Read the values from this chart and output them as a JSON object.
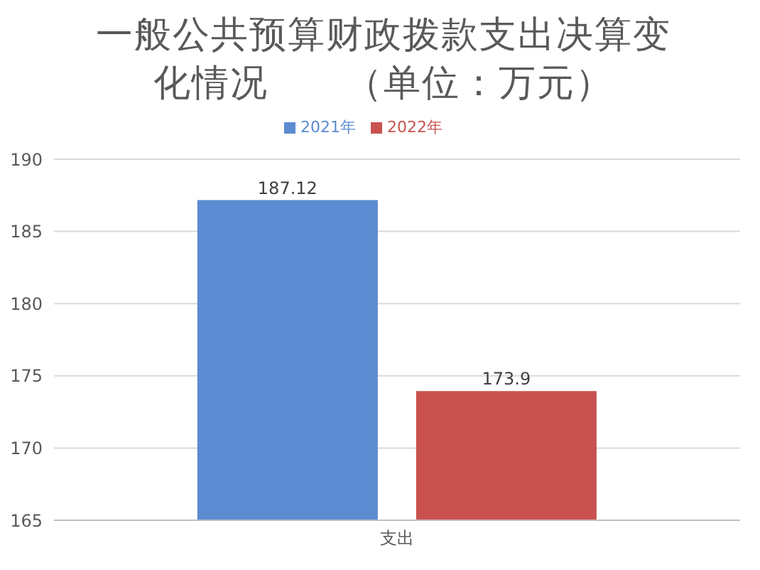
{
  "chart_data": {
    "type": "bar",
    "title": "一般公共预算财政拨款支出决算变化情况　　（单位：万元）",
    "categories": [
      "支出"
    ],
    "series": [
      {
        "name": "2021年",
        "color": "#5b8bd0",
        "values": [
          187.12
        ]
      },
      {
        "name": "2022年",
        "color": "#c9524f",
        "values": [
          173.9
        ]
      }
    ],
    "ylim": [
      165,
      190
    ],
    "yticks": [
      165,
      170,
      175,
      180,
      185,
      190
    ],
    "grid": "y",
    "legend": "top",
    "data_labels": true
  }
}
